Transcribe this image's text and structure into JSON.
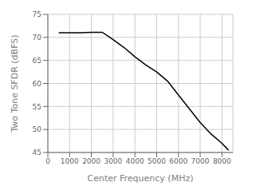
{
  "chart_data": {
    "type": "line",
    "xlabel": "Center Frequency (MHz)",
    "ylabel": "Two Tone SFDR (dBFS)",
    "x": [
      500,
      1000,
      1500,
      2000,
      2500,
      3000,
      3500,
      4000,
      4500,
      5000,
      5250,
      5500,
      6000,
      6500,
      7000,
      7500,
      8000,
      8300
    ],
    "values": [
      71.0,
      71.0,
      71.0,
      71.1,
      71.1,
      69.5,
      67.8,
      65.8,
      64.0,
      62.5,
      61.5,
      60.5,
      57.5,
      54.5,
      51.5,
      49.0,
      47.0,
      45.5
    ],
    "xlim": [
      0,
      8500
    ],
    "ylim": [
      45,
      75
    ],
    "xticks": [
      0,
      1000,
      2000,
      3000,
      4000,
      5000,
      6000,
      7000,
      8000
    ],
    "yticks": [
      45,
      50,
      55,
      60,
      65,
      70,
      75
    ],
    "grid": true,
    "color": "#000000"
  }
}
